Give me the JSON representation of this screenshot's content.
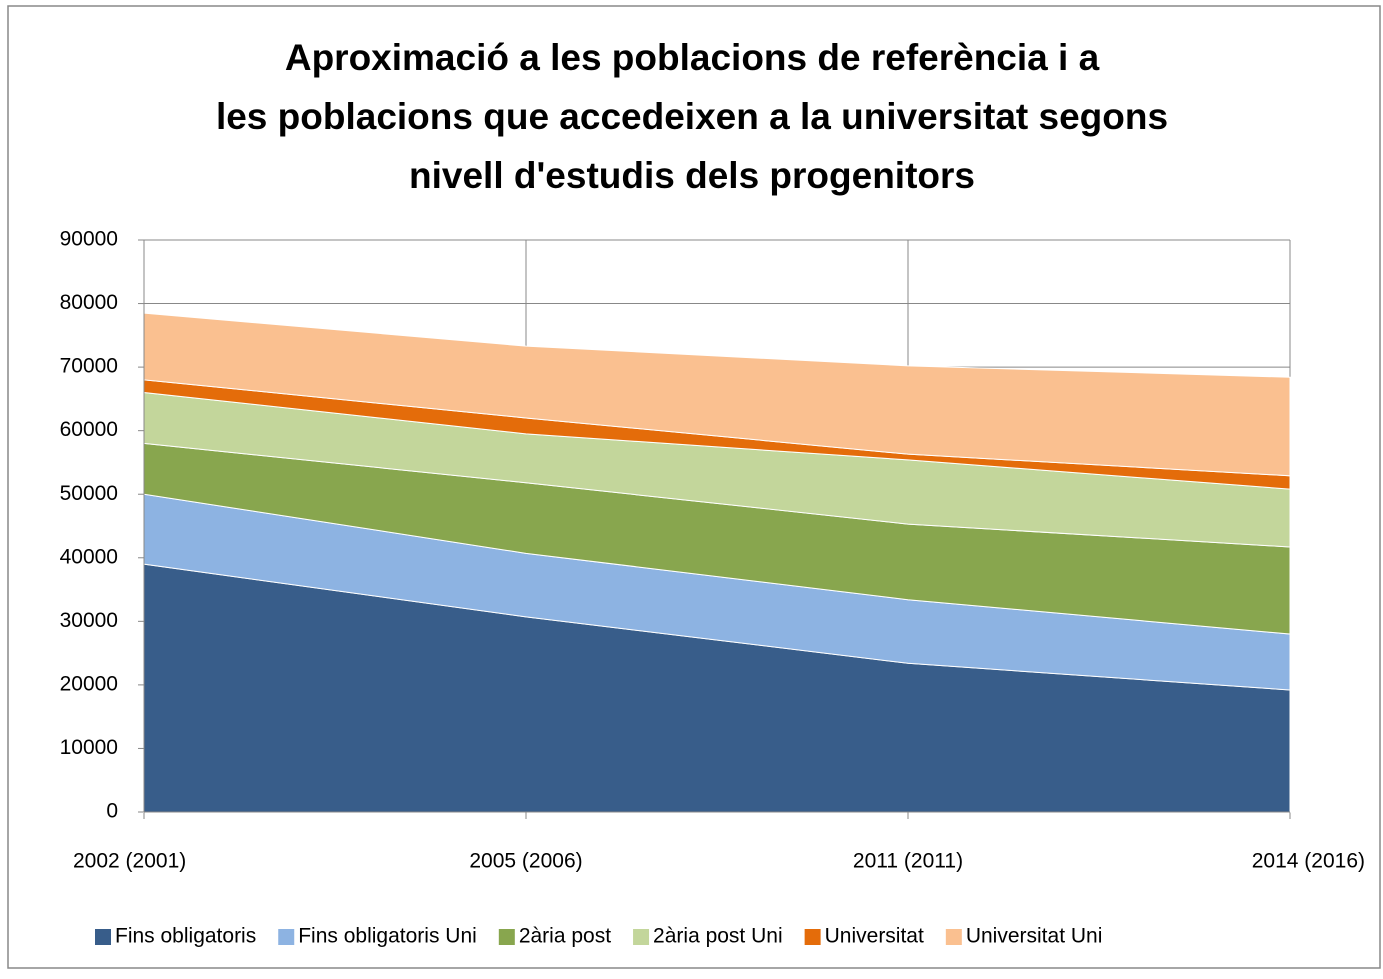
{
  "chart_data": {
    "type": "stacked_area",
    "title": "Aproximació a les poblacions de referència i a les poblacions que accedeixen a la universitat segons nivell d'estudis dels progenitors",
    "categories": [
      "2002 (2001)",
      "2005 (2006)",
      "2011 (2011)",
      "2014 (2016)"
    ],
    "series": [
      {
        "name": "Fins obligatoris",
        "color": "#385d8a",
        "values": [
          39000,
          30700,
          23400,
          19200
        ]
      },
      {
        "name": "Fins obligatoris  Uni",
        "color": "#8db3e2",
        "values": [
          11000,
          10000,
          10000,
          8800
        ]
      },
      {
        "name": "2ària post",
        "color": "#88a64e",
        "values": [
          8000,
          11100,
          11900,
          13700
        ]
      },
      {
        "name": "2ària post Uni",
        "color": "#c3d69b",
        "values": [
          8000,
          7700,
          10100,
          9100
        ]
      },
      {
        "name": "Universitat",
        "color": "#e46c0a",
        "values": [
          2000,
          2500,
          900,
          2100
        ]
      },
      {
        "name": "Universitat Uni",
        "color": "#fac090",
        "values": [
          10500,
          11300,
          13900,
          15500
        ]
      }
    ],
    "ylim": [
      0,
      90000
    ],
    "yticks": [
      0,
      10000,
      20000,
      30000,
      40000,
      50000,
      60000,
      70000,
      80000,
      90000
    ],
    "grid": true,
    "legend": "bottom"
  }
}
